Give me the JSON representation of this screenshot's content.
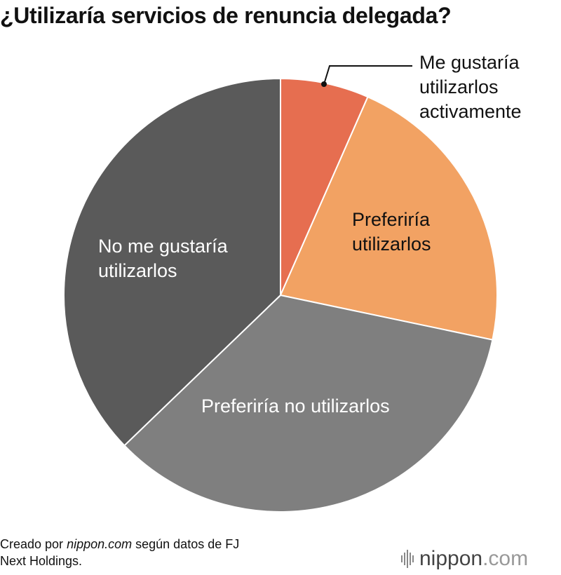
{
  "chart_data": {
    "type": "pie",
    "title": "¿Utilizaría servicios de renuncia delegada?",
    "unit": "%",
    "slices": [
      {
        "label": "Me gustaría utilizarlos activamente",
        "value": 6.6,
        "color": "#e66e50"
      },
      {
        "label": "Preferiría utilizarlos",
        "value": 21.7,
        "color": "#f2a263"
      },
      {
        "label": "Preferiría no utilizarlos",
        "value": 34.5,
        "color": "#7f7f7f"
      },
      {
        "label": "No me gustaría utilizarlos",
        "value": 37.2,
        "color": "#5a5a5a"
      }
    ],
    "start_angle": "top",
    "direction": "clockwise"
  },
  "labels": {
    "l0": [
      "Me gustaría",
      "utilizarlos",
      "activamente"
    ],
    "l1": [
      "Preferiría",
      "utilizarlos"
    ],
    "l2": [
      "Preferiría no utilizarlos"
    ],
    "l3": [
      "No me gustaría",
      "utilizarlos"
    ]
  },
  "source": {
    "prefix": "Creado por ",
    "site": "nippon.com",
    "suffix": " según datos de FJ",
    "line2": "Next Holdings."
  },
  "logo": {
    "name": "nippon",
    "tld": ".com"
  }
}
